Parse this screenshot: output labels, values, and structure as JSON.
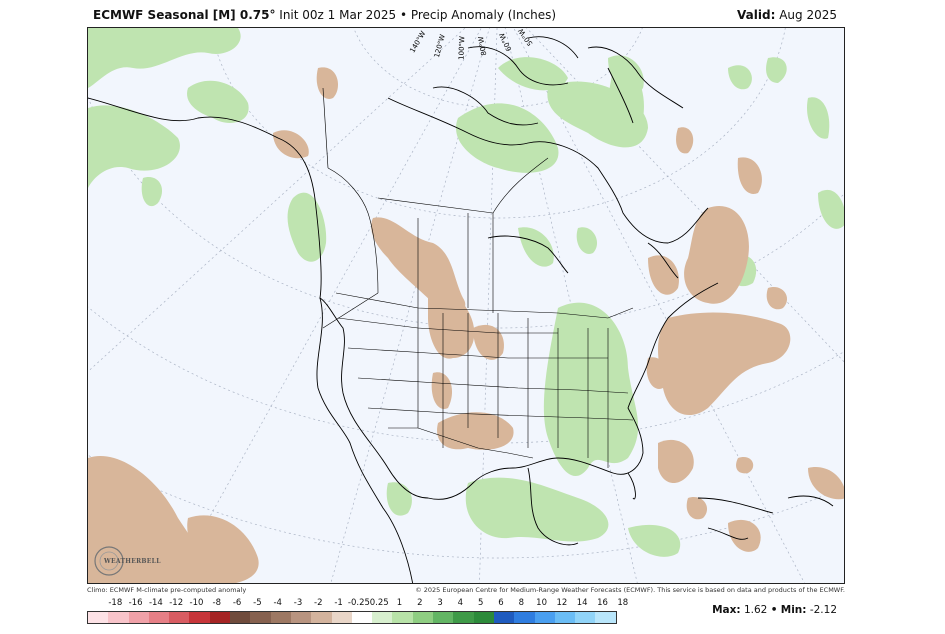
{
  "header": {
    "model": "ECMWF Seasonal [M] 0.75",
    "degree": "°",
    "init": "Init 00z 1 Mar 2025",
    "bullet": "•",
    "field": "Precip Anomaly (Inches)",
    "valid_label": "Valid:",
    "valid_value": "Aug 2025"
  },
  "map": {
    "longitude_labels": [
      "140°W",
      "120°W",
      "100°W",
      "80°W",
      "60°W",
      "50°W"
    ],
    "logo_text": "WEATHERBELL",
    "colors": {
      "dry_anomaly": "#d8b69a",
      "wet_anomaly": "#bfe4b0",
      "background": "#f2f6fd",
      "borders": "#000000"
    }
  },
  "credits": {
    "left": "Climo: ECMWF M-climate pre-computed anomaly",
    "right": "© 2025 European Centre for Medium-Range Weather Forecasts (ECMWF). This service is based on data and products of the ECMWF."
  },
  "colorbar": {
    "labels": [
      "-18",
      "-16",
      "-14",
      "-12",
      "-10",
      "-8",
      "-6",
      "-5",
      "-4",
      "-3",
      "-2",
      "-1",
      "-0.25",
      "0.25",
      "1",
      "2",
      "3",
      "4",
      "5",
      "6",
      "8",
      "10",
      "12",
      "14",
      "16",
      "18"
    ],
    "colors": [
      "#fde2e6",
      "#f8c4ca",
      "#f0a1a8",
      "#e67f86",
      "#d85c62",
      "#c7353a",
      "#a52424",
      "#6f4b3c",
      "#86614f",
      "#9d7863",
      "#b89480",
      "#d3b39d",
      "#e9d6c8",
      "#ffffff",
      "#d8f0cf",
      "#b8e3a8",
      "#8fce82",
      "#63b564",
      "#3f9a48",
      "#2c8a3a",
      "#1f5bbf",
      "#2f7de0",
      "#4a9ff0",
      "#6bbdf5",
      "#91d4f8",
      "#b9e6fb"
    ]
  },
  "stats": {
    "max_label": "Max:",
    "max_value": "1.62",
    "sep": "•",
    "min_label": "Min:",
    "min_value": "-2.12"
  }
}
